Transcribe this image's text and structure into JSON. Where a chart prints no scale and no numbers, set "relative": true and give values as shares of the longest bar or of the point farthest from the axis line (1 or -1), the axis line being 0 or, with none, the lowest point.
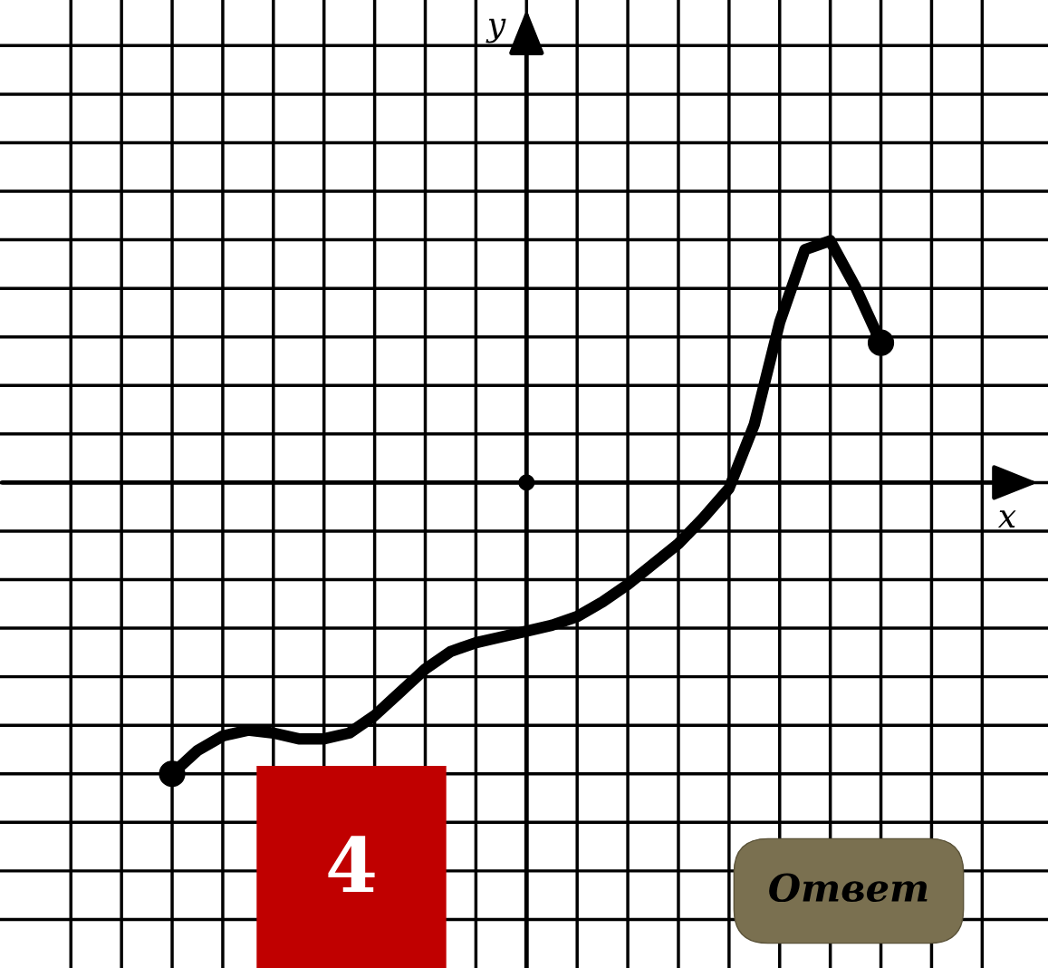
{
  "chart_data": {
    "type": "line",
    "relative": true,
    "grid": true,
    "color": "#000000",
    "categories": [
      null,
      null,
      null,
      null,
      null,
      null,
      null,
      null,
      null,
      null,
      null,
      null,
      null,
      null,
      null,
      null,
      null,
      null,
      null,
      null,
      null,
      null,
      null,
      null,
      null,
      null,
      null,
      null,
      null
    ],
    "values": [
      -1,
      -0.92,
      -0.87,
      -0.85,
      -0.86,
      -0.88,
      -0.88,
      -0.86,
      -0.8,
      -0.72,
      -0.64,
      -0.58,
      -0.55,
      -0.53,
      -0.51,
      -0.49,
      -0.46,
      -0.41,
      -0.35,
      -0.28,
      -0.21,
      -0.12,
      -0.02,
      0.2,
      0.55,
      0.8,
      0.83,
      0.67,
      0.48
    ],
    "annotations": [
      "y",
      "x",
      "4",
      "Ответ"
    ]
  }
}
